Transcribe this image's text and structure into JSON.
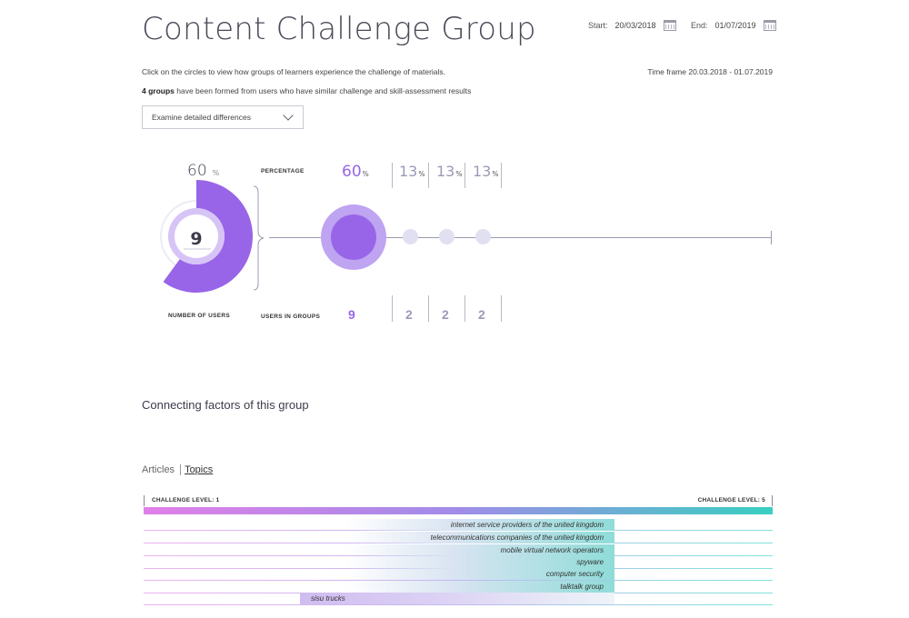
{
  "header": {
    "title": "Content Challenge Group",
    "start_label": "Start:",
    "start_value": "20/03/2018",
    "end_label": "End:",
    "end_value": "01/07/2019"
  },
  "info": {
    "instruction": "Click on the circles to view how groups of learners experience the challenge of materials.",
    "timeframe": "Time frame 20.03.2018 - 01.07.2019",
    "groups_bold": "4 groups",
    "groups_rest": " have been formed from users who have similar challenge and skill-assessment results"
  },
  "dropdown": {
    "selected": "Examine detailed differences"
  },
  "overview": {
    "percent_value": "60",
    "percent_unit": "%",
    "users_count": "9",
    "number_of_users_label": "NUMBER OF USERS",
    "percentage_label": "PERCENTAGE",
    "users_in_groups_label": "USERS IN GROUPS"
  },
  "groups": [
    {
      "percent": "60",
      "unit": "%",
      "users": "9"
    },
    {
      "percent": "13",
      "unit": "%",
      "users": "2"
    },
    {
      "percent": "13",
      "unit": "%",
      "users": "2"
    },
    {
      "percent": "13",
      "unit": "%",
      "users": "2"
    }
  ],
  "connecting": {
    "title": "Connecting factors of this group",
    "tab_articles": "Articles",
    "tab_topics": "Topics",
    "challenge_min_label": "CHALLENGE LEVEL: 1",
    "challenge_max_label": "CHALLENGE LEVEL: 5",
    "topics": [
      "internet service providers of the united kingdom",
      "telecommunications companies of the united kingdom",
      "mobile virtual network operators",
      "spyware",
      "computer security",
      "talktalk group",
      "sisu trucks"
    ]
  },
  "colors": {
    "accent": "#9865e8",
    "accent_light": "#bfa4f2",
    "muted": "#9a9ab8",
    "teal": "#38cfc0",
    "pink": "#e080e8"
  }
}
